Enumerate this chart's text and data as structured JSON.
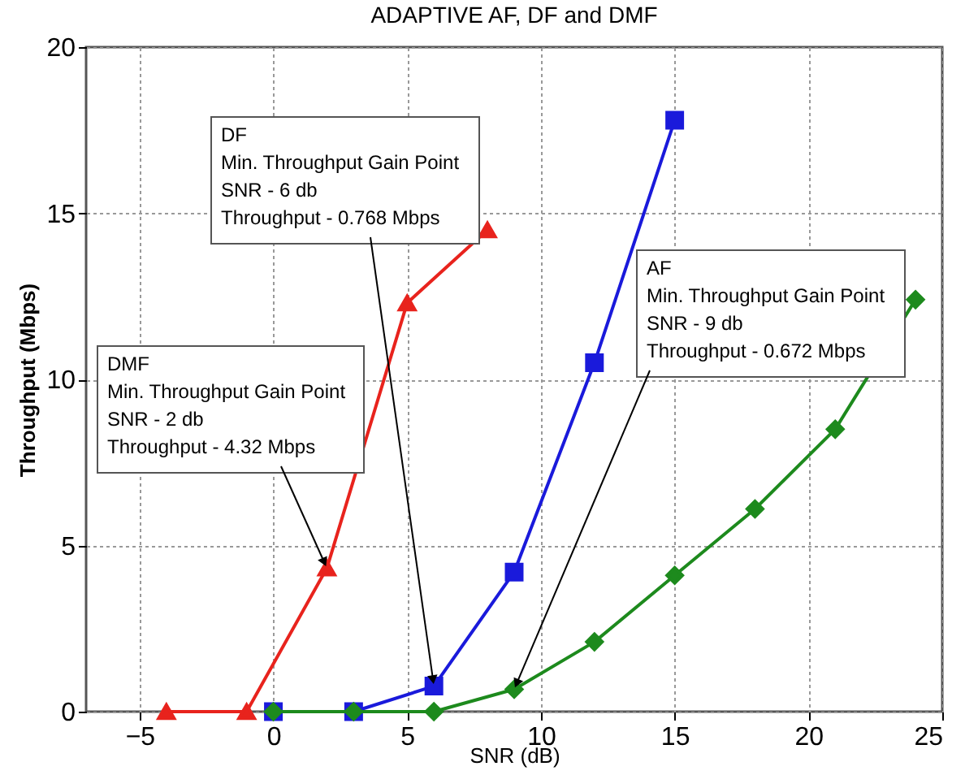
{
  "chart_data": {
    "type": "line",
    "title": "ADAPTIVE AF, DF and DMF",
    "xlabel": "SNR (dB)",
    "ylabel": "Throughput (Mbps)",
    "xlim": [
      -7,
      25
    ],
    "ylim": [
      0,
      20
    ],
    "xticks": [
      -5,
      0,
      5,
      10,
      15,
      20,
      25
    ],
    "yticks": [
      0,
      5,
      10,
      15,
      20
    ],
    "grid": true,
    "line_style": "solid",
    "series": [
      {
        "color": "#e8231d",
        "marker": "triangle",
        "x": [
          -4,
          -1,
          2,
          5,
          8
        ],
        "values": [
          0,
          0,
          4.32,
          12.3,
          14.5
        ]
      },
      {
        "color": "#1a1adb",
        "marker": "square",
        "x": [
          0,
          3,
          6,
          9,
          12,
          15
        ],
        "values": [
          0,
          0,
          0.768,
          4.2,
          10.5,
          17.8
        ]
      },
      {
        "color": "#1d8a1d",
        "marker": "diamond",
        "x": [
          0,
          3,
          6,
          9,
          12,
          15,
          18,
          21,
          24
        ],
        "values": [
          0,
          0,
          0,
          0.672,
          2.1,
          4.1,
          6.1,
          8.5,
          12.4
        ]
      }
    ],
    "annotations": [
      {
        "text": "DMF\nMin. Throughput Gain Point\nSNR - 2 db\nThroughput - 4.32 Mbps",
        "x": 2,
        "y": 4.32
      },
      {
        "text": "DF\nMin. Throughput Gain Point\nSNR - 6 db\nThroughput - 0.768 Mbps",
        "x": 6,
        "y": 0.768
      },
      {
        "text": "AF\nMin. Throughput Gain Point\nSNR - 9 db\nThroughput - 0.672 Mbps",
        "x": 9,
        "y": 0.672
      }
    ]
  }
}
